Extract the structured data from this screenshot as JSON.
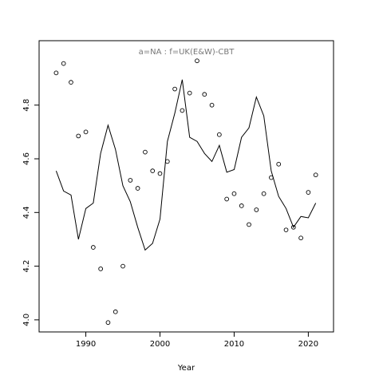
{
  "chart_data": {
    "type": "scatter",
    "title": "a=NA  :  f=UK(E&W)-CBT",
    "xlabel": "Year",
    "ylabel": "",
    "xlim": [
      1983.7,
      2023.4
    ],
    "ylim": [
      3.955,
      5.04
    ],
    "xticks": [
      1990,
      2000,
      2010,
      2020
    ],
    "yticks": [
      4.0,
      4.2,
      4.4,
      4.6,
      4.8
    ],
    "grid": false,
    "series": [
      {
        "kind": "points",
        "x": [
          1986,
          1987,
          1988,
          1989,
          1990,
          1991,
          1992,
          1993,
          1994,
          1995,
          1996,
          1997,
          1998,
          1999,
          2000,
          2001,
          2002,
          2003,
          2004,
          2005,
          2006,
          2007,
          2008,
          2009,
          2010,
          2011,
          2012,
          2013,
          2014,
          2015,
          2016,
          2017,
          2018,
          2019,
          2020,
          2021
        ],
        "y": [
          4.92,
          4.955,
          4.885,
          4.685,
          4.7,
          4.27,
          4.19,
          3.99,
          4.03,
          4.2,
          4.52,
          4.49,
          4.625,
          4.555,
          4.545,
          4.59,
          4.86,
          4.78,
          4.845,
          4.965,
          4.84,
          4.8,
          4.69,
          4.45,
          4.47,
          4.425,
          4.355,
          4.41,
          4.47,
          4.53,
          4.58,
          4.335,
          4.345,
          4.305,
          4.475,
          4.54
        ]
      },
      {
        "kind": "line",
        "x": [
          1986,
          1987,
          1988,
          1989,
          1990,
          1991,
          1992,
          1993,
          1994,
          1995,
          1996,
          1997,
          1998,
          1999,
          2000,
          2001,
          2002,
          2003,
          2004,
          2005,
          2006,
          2007,
          2008,
          2009,
          2010,
          2011,
          2012,
          2013,
          2014,
          2015,
          2016,
          2017,
          2018,
          2019,
          2020,
          2021
        ],
        "y": [
          4.555,
          4.48,
          4.465,
          4.3,
          4.415,
          4.435,
          4.62,
          4.725,
          4.635,
          4.5,
          4.44,
          4.345,
          4.26,
          4.285,
          4.375,
          4.665,
          4.77,
          4.895,
          4.68,
          4.665,
          4.62,
          4.59,
          4.65,
          4.55,
          4.56,
          4.68,
          4.715,
          4.83,
          4.76,
          4.555,
          4.46,
          4.415,
          4.345,
          4.385,
          4.38,
          4.435
        ]
      }
    ]
  }
}
